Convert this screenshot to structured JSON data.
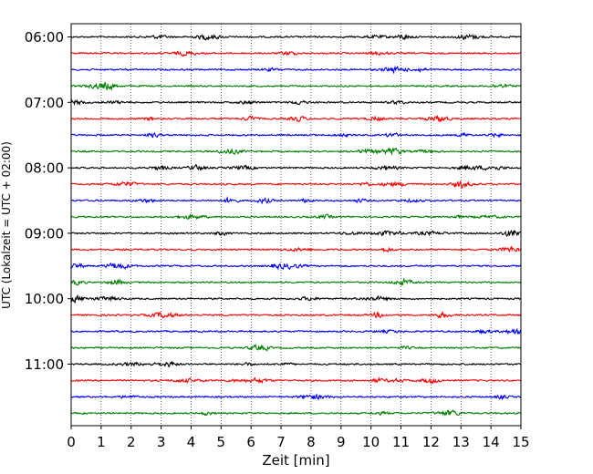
{
  "chart_data": {
    "type": "line",
    "title": "",
    "xlabel": "Zeit  [min]",
    "ylabel": "UTC (Lokalzeit = UTC + 02:00)",
    "xlim": [
      0,
      15
    ],
    "x_ticks": [
      0,
      1,
      2,
      3,
      4,
      5,
      6,
      7,
      8,
      9,
      10,
      11,
      12,
      13,
      14,
      15
    ],
    "x_tick_labels": [
      "0",
      "1",
      "2",
      "3",
      "4",
      "5",
      "6",
      "7",
      "8",
      "9",
      "10",
      "11",
      "12",
      "13",
      "14",
      "15"
    ],
    "y_tick_labels": [
      "06:00",
      "07:00",
      "08:00",
      "09:00",
      "10:00",
      "11:00"
    ],
    "grid": "vertical dotted lines at each minute",
    "trace_interval_minutes": 15,
    "traces": [
      {
        "start": "06:00",
        "color": "#000000"
      },
      {
        "start": "06:15",
        "color": "#ff0000"
      },
      {
        "start": "06:30",
        "color": "#0000ff"
      },
      {
        "start": "06:45",
        "color": "#008000"
      },
      {
        "start": "07:00",
        "color": "#000000"
      },
      {
        "start": "07:15",
        "color": "#ff0000"
      },
      {
        "start": "07:30",
        "color": "#0000ff"
      },
      {
        "start": "07:45",
        "color": "#008000"
      },
      {
        "start": "08:00",
        "color": "#000000"
      },
      {
        "start": "08:15",
        "color": "#ff0000"
      },
      {
        "start": "08:30",
        "color": "#0000ff"
      },
      {
        "start": "08:45",
        "color": "#008000"
      },
      {
        "start": "09:00",
        "color": "#000000"
      },
      {
        "start": "09:15",
        "color": "#ff0000"
      },
      {
        "start": "09:30",
        "color": "#0000ff"
      },
      {
        "start": "09:45",
        "color": "#008000"
      },
      {
        "start": "10:00",
        "color": "#000000"
      },
      {
        "start": "10:15",
        "color": "#ff0000"
      },
      {
        "start": "10:30",
        "color": "#0000ff"
      },
      {
        "start": "10:45",
        "color": "#008000"
      },
      {
        "start": "11:00",
        "color": "#000000"
      },
      {
        "start": "11:15",
        "color": "#ff0000"
      },
      {
        "start": "11:30",
        "color": "#0000ff"
      },
      {
        "start": "11:45",
        "color": "#008000"
      }
    ]
  }
}
